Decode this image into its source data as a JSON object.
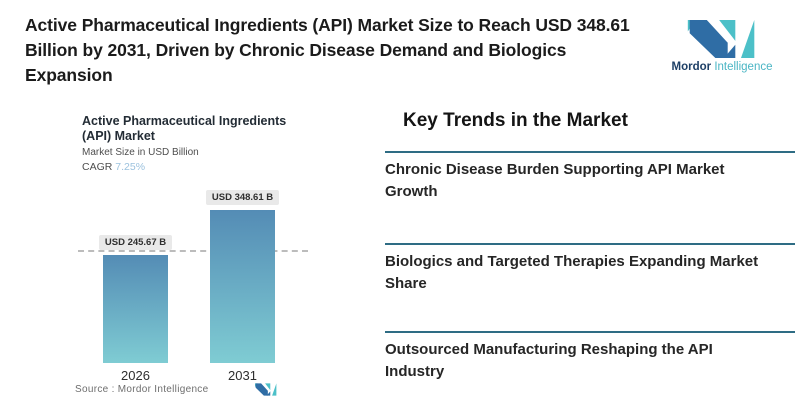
{
  "headline": "Active Pharmaceutical Ingredients (API) Market Size to Reach USD 348.61 Billion by 2031, Driven by Chronic Disease Demand and Biologics Expansion",
  "brand": {
    "name_primary": "Mordor",
    "name_secondary": "Intelligence",
    "colors": {
      "dark_blue": "#2f6da5",
      "teal": "#4cc0c8"
    }
  },
  "chart_data": {
    "type": "bar",
    "title": "Active Pharmaceutical Ingredients (API) Market",
    "subtitle": "Market Size in USD Billion",
    "cagr_label": "CAGR",
    "cagr_value": "7.25%",
    "categories": [
      "2026",
      "2031"
    ],
    "values": [
      245.67,
      348.61
    ],
    "value_labels": [
      "USD 245.67 B",
      "USD 348.61 B"
    ],
    "ylabel": "Market Size in USD Billion",
    "ylim": [
      0,
      400
    ],
    "grid": "off",
    "reference_line_value": 245.67,
    "bar_gradient_top": "#548cb5",
    "bar_gradient_bottom": "#7fccd3",
    "source": "Source :  Mordor Intelligence"
  },
  "trends": {
    "heading": "Key Trends in the Market",
    "divider_color": "#2e6c84",
    "items": [
      {
        "label": "Chronic Disease Burden Supporting API Market Growth"
      },
      {
        "label": "Biologics and Targeted Therapies Expanding Market Share"
      },
      {
        "label": "Outsourced Manufacturing Reshaping the API Industry"
      }
    ]
  }
}
